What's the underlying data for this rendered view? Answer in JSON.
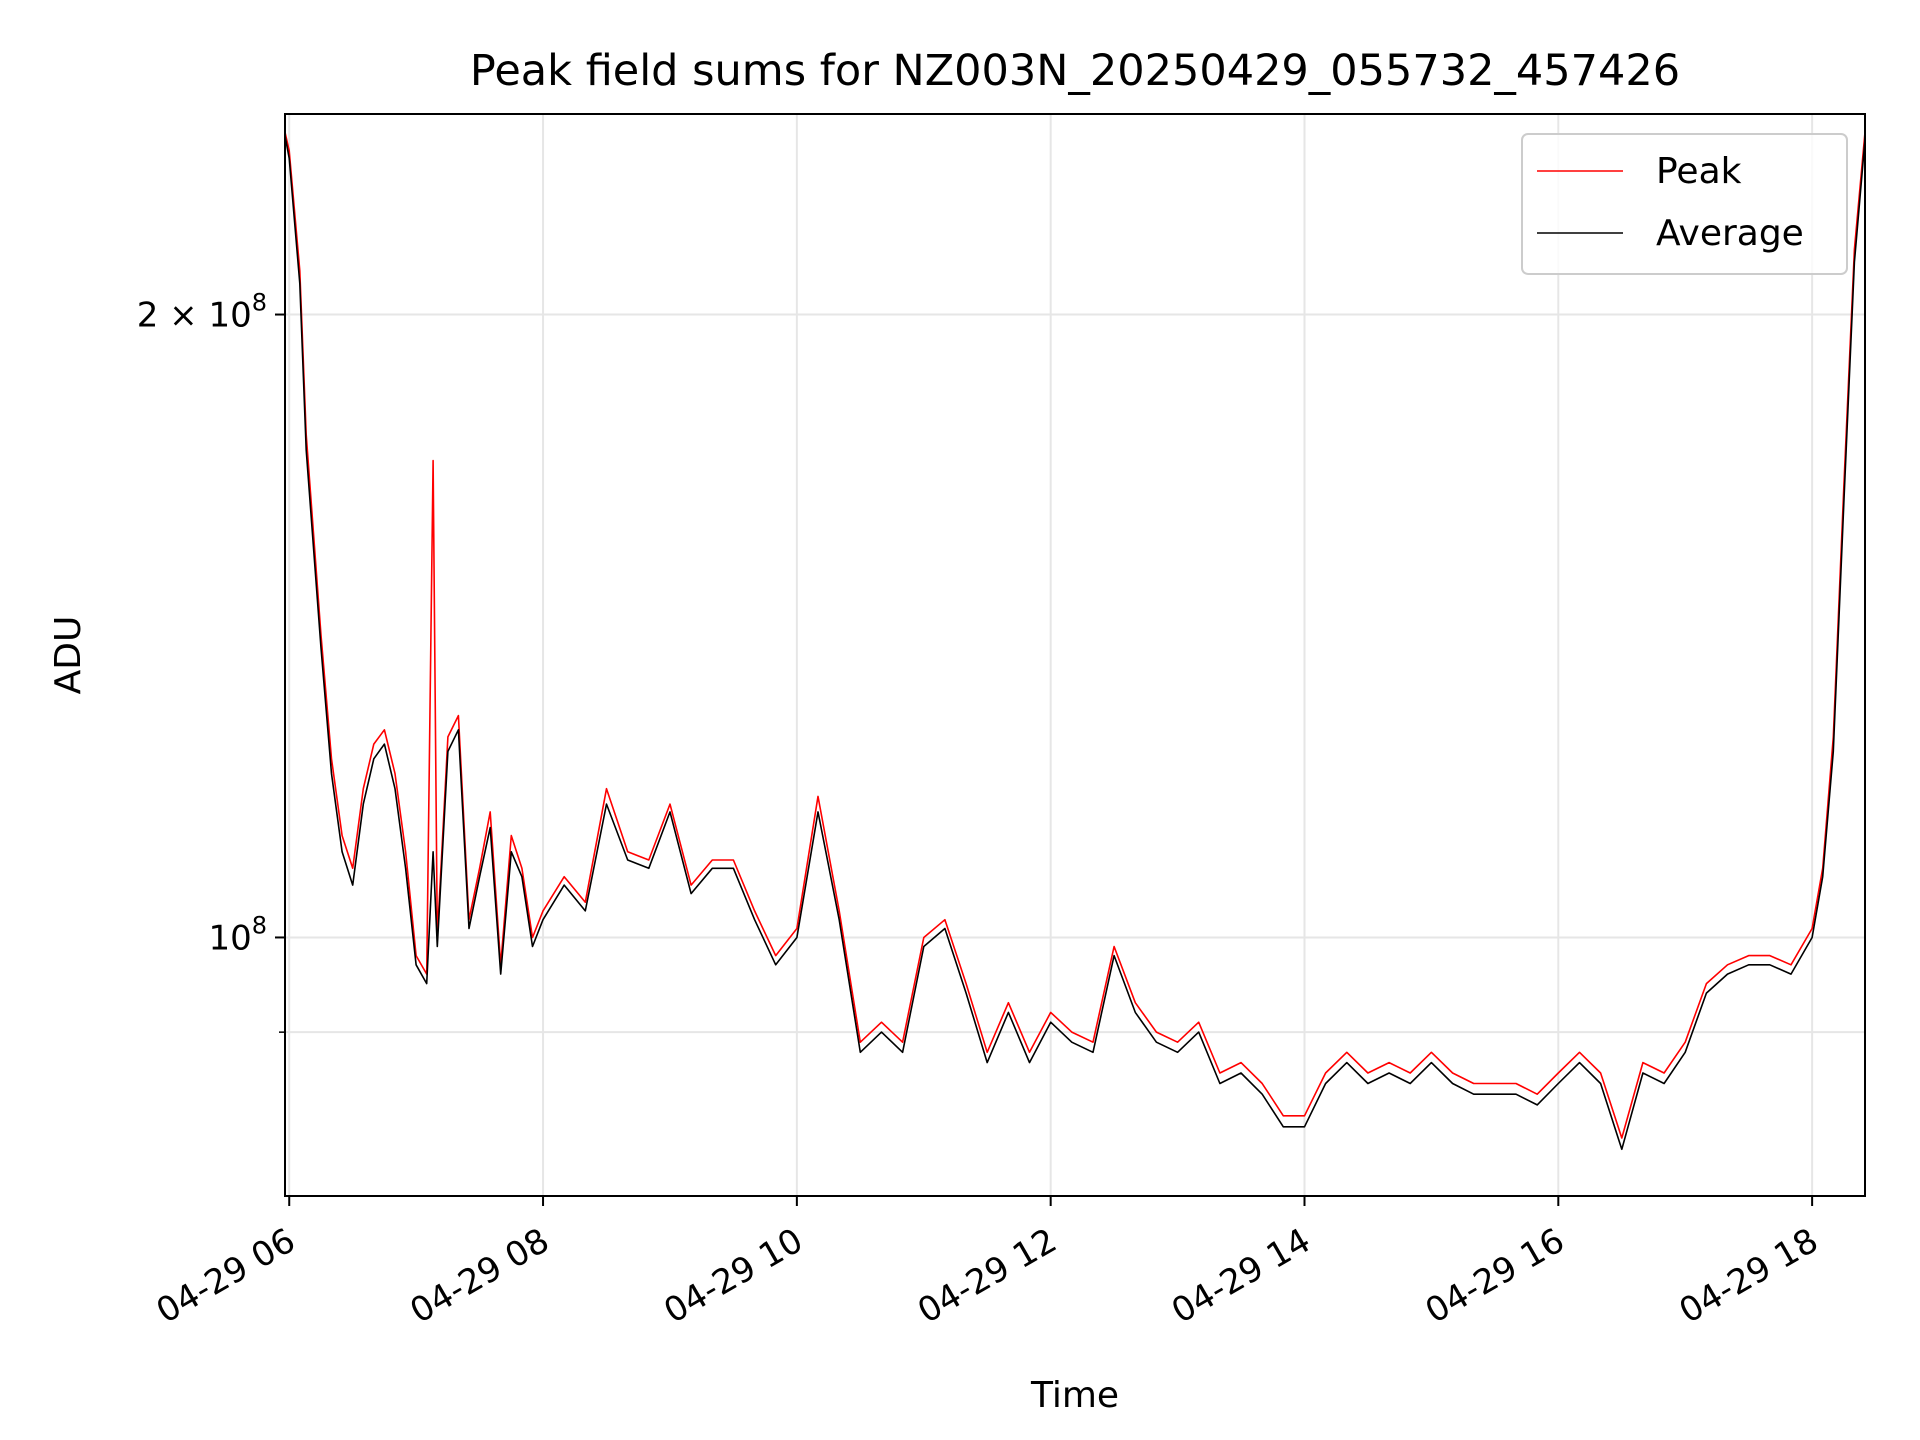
{
  "chart_data": {
    "type": "line",
    "title": "Peak field sums for NZ003N_20250429_055732_457426",
    "xlabel": "Time",
    "ylabel": "ADU",
    "y_scale": "log",
    "grid": true,
    "legend_position": "top-right",
    "x_range": [
      "04-29 05:58",
      "04-29 18:25"
    ],
    "ylim": [
      75000000,
      250000000
    ],
    "x_tick_labels": [
      "04-29 06",
      "04-29 08",
      "04-29 10",
      "04-29 12",
      "04-29 14",
      "04-29 16",
      "04-29 18"
    ],
    "x_tick_times": [
      "04-29 06:00",
      "04-29 08:00",
      "04-29 10:00",
      "04-29 12:00",
      "04-29 14:00",
      "04-29 16:00",
      "04-29 18:00"
    ],
    "y_ticks": [
      {
        "value": 100000000,
        "base": "10",
        "exp": "8",
        "prefix": ""
      },
      {
        "value": 200000000,
        "base": "10",
        "exp": "8",
        "prefix": "2 × "
      }
    ],
    "y_minor_ticks": [
      90000000
    ],
    "series": [
      {
        "name": "Peak",
        "color": "#ff0000",
        "x": [
          "05:58",
          "06:00",
          "06:05",
          "06:08",
          "06:15",
          "06:20",
          "06:25",
          "06:30",
          "06:35",
          "06:40",
          "06:45",
          "06:50",
          "06:55",
          "07:00",
          "07:05",
          "07:08",
          "07:10",
          "07:15",
          "07:20",
          "07:25",
          "07:30",
          "07:35",
          "07:40",
          "07:45",
          "07:50",
          "07:55",
          "08:00",
          "08:10",
          "08:20",
          "08:30",
          "08:40",
          "08:50",
          "09:00",
          "09:10",
          "09:20",
          "09:30",
          "09:40",
          "09:50",
          "10:00",
          "10:10",
          "10:20",
          "10:30",
          "10:40",
          "10:50",
          "11:00",
          "11:10",
          "11:20",
          "11:30",
          "11:40",
          "11:50",
          "12:00",
          "12:10",
          "12:20",
          "12:30",
          "12:40",
          "12:50",
          "13:00",
          "13:10",
          "13:20",
          "13:30",
          "13:40",
          "13:50",
          "14:00",
          "14:10",
          "14:20",
          "14:30",
          "14:40",
          "14:50",
          "15:00",
          "15:10",
          "15:20",
          "15:30",
          "15:40",
          "15:50",
          "16:00",
          "16:10",
          "16:20",
          "16:30",
          "16:40",
          "16:50",
          "17:00",
          "17:10",
          "17:20",
          "17:30",
          "17:40",
          "17:50",
          "18:00",
          "18:05",
          "18:10",
          "18:15",
          "18:20",
          "18:25"
        ],
        "y": [
          245000000,
          240000000,
          210000000,
          175000000,
          140000000,
          122000000,
          112000000,
          108000000,
          118000000,
          124000000,
          126000000,
          120000000,
          110000000,
          98000000,
          96000000,
          170000000,
          100000000,
          125000000,
          128000000,
          102000000,
          108000000,
          115000000,
          97000000,
          112000000,
          108000000,
          100000000,
          103000000,
          107000000,
          104000000,
          118000000,
          110000000,
          109000000,
          116000000,
          106000000,
          109000000,
          109000000,
          103000000,
          98000000,
          101000000,
          117000000,
          103000000,
          89000000,
          91000000,
          89000000,
          100000000,
          102000000,
          95000000,
          88000000,
          93000000,
          88000000,
          92000000,
          90000000,
          89000000,
          99000000,
          93000000,
          90000000,
          89000000,
          91000000,
          86000000,
          87000000,
          85000000,
          82000000,
          82000000,
          86000000,
          88000000,
          86000000,
          87000000,
          86000000,
          88000000,
          86000000,
          85000000,
          85000000,
          85000000,
          84000000,
          86000000,
          88000000,
          86000000,
          80000000,
          87000000,
          86000000,
          89000000,
          95000000,
          97000000,
          98000000,
          98000000,
          97000000,
          101000000,
          108000000,
          125000000,
          165000000,
          215000000,
          245000000
        ]
      },
      {
        "name": "Average",
        "color": "#000000",
        "x": [
          "05:58",
          "06:00",
          "06:05",
          "06:08",
          "06:15",
          "06:20",
          "06:25",
          "06:30",
          "06:35",
          "06:40",
          "06:45",
          "06:50",
          "06:55",
          "07:00",
          "07:05",
          "07:08",
          "07:10",
          "07:15",
          "07:20",
          "07:25",
          "07:30",
          "07:35",
          "07:40",
          "07:45",
          "07:50",
          "07:55",
          "08:00",
          "08:10",
          "08:20",
          "08:30",
          "08:40",
          "08:50",
          "09:00",
          "09:10",
          "09:20",
          "09:30",
          "09:40",
          "09:50",
          "10:00",
          "10:10",
          "10:20",
          "10:30",
          "10:40",
          "10:50",
          "11:00",
          "11:10",
          "11:20",
          "11:30",
          "11:40",
          "11:50",
          "12:00",
          "12:10",
          "12:20",
          "12:30",
          "12:40",
          "12:50",
          "13:00",
          "13:10",
          "13:20",
          "13:30",
          "13:40",
          "13:50",
          "14:00",
          "14:10",
          "14:20",
          "14:30",
          "14:40",
          "14:50",
          "15:00",
          "15:10",
          "15:20",
          "15:30",
          "15:40",
          "15:50",
          "16:00",
          "16:10",
          "16:20",
          "16:30",
          "16:40",
          "16:50",
          "17:00",
          "17:10",
          "17:20",
          "17:30",
          "17:40",
          "17:50",
          "18:00",
          "18:05",
          "18:10",
          "18:15",
          "18:20",
          "18:25"
        ],
        "y": [
          244000000,
          238000000,
          207000000,
          172000000,
          138000000,
          120000000,
          110000000,
          106000000,
          116000000,
          122000000,
          124000000,
          118000000,
          108000000,
          97000000,
          95000000,
          110000000,
          99000000,
          123000000,
          126000000,
          101000000,
          107000000,
          113000000,
          96000000,
          110000000,
          107000000,
          99000000,
          102000000,
          106000000,
          103000000,
          116000000,
          109000000,
          108000000,
          115000000,
          105000000,
          108000000,
          108000000,
          102000000,
          97000000,
          100000000,
          115000000,
          102000000,
          88000000,
          90000000,
          88000000,
          99000000,
          101000000,
          94000000,
          87000000,
          92000000,
          87000000,
          91000000,
          89000000,
          88000000,
          98000000,
          92000000,
          89000000,
          88000000,
          90000000,
          85000000,
          86000000,
          84000000,
          81000000,
          81000000,
          85000000,
          87000000,
          85000000,
          86000000,
          85000000,
          87000000,
          85000000,
          84000000,
          84000000,
          84000000,
          83000000,
          85000000,
          87000000,
          85000000,
          79000000,
          86000000,
          85000000,
          88000000,
          94000000,
          96000000,
          97000000,
          97000000,
          96000000,
          100000000,
          107000000,
          123000000,
          162000000,
          212000000,
          243000000
        ]
      }
    ]
  }
}
